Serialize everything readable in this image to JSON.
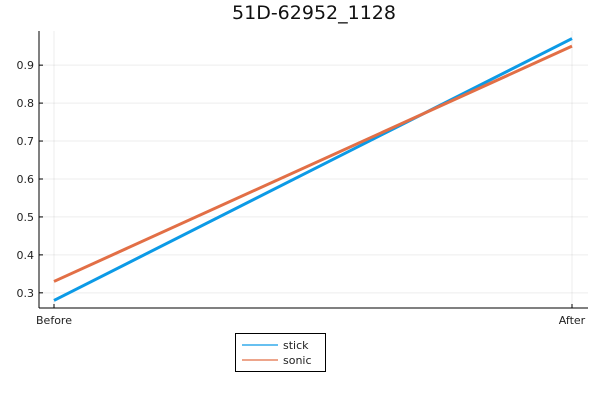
{
  "chart_data": {
    "type": "line",
    "title": "51D-62952_1128",
    "categories": [
      "Before",
      "After"
    ],
    "series": [
      {
        "name": "stick",
        "values": [
          0.28,
          0.97
        ],
        "color": "#0c9ae6"
      },
      {
        "name": "sonic",
        "values": [
          0.33,
          0.95
        ],
        "color": "#e26f46"
      }
    ],
    "ylim": [
      0.26,
      0.99
    ],
    "yticks": [
      0.3,
      0.4,
      0.5,
      0.6,
      0.7,
      0.8,
      0.9
    ],
    "ytick_labels": [
      "0.3",
      "0.4",
      "0.5",
      "0.6",
      "0.7",
      "0.8",
      "0.9"
    ],
    "xlabel": "",
    "ylabel": "",
    "grid": true,
    "legend_position": "bottom-center"
  }
}
